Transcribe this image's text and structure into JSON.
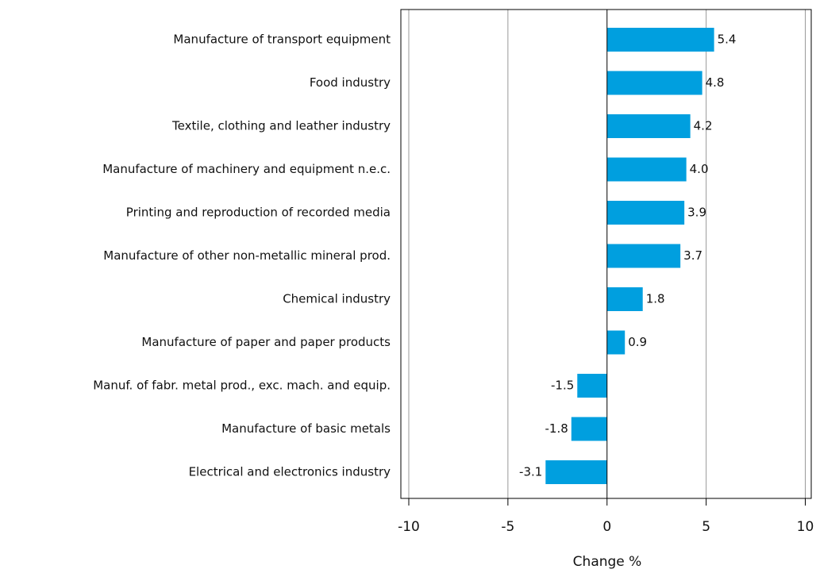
{
  "chart_data": {
    "type": "barh",
    "x_label": "Change %",
    "categories": [
      "Manufacture of transport equipment",
      "Food industry",
      "Textile, clothing and leather industry",
      "Manufacture of machinery and equipment n.e.c.",
      "Printing and reproduction of recorded media",
      "Manufacture of other non-metallic mineral prod.",
      "Chemical industry",
      "Manufacture of paper and paper products",
      "Manuf. of fabr. metal prod., exc. mach. and equip.",
      "Manufacture of basic metals",
      "Electrical and electronics industry"
    ],
    "values": [
      5.4,
      4.8,
      4.2,
      4.0,
      3.9,
      3.7,
      1.8,
      0.9,
      -1.5,
      -1.8,
      -3.1
    ],
    "value_labels": [
      "5.4",
      "4.8",
      "4.2",
      "4.0",
      "3.9",
      "3.7",
      "1.8",
      "0.9",
      "-1.5",
      "-1.8",
      "-3.1"
    ],
    "color": "#009fdf",
    "xlim": [
      -10.4,
      10.3
    ],
    "xticks": [
      -10,
      -5,
      0,
      5,
      10
    ],
    "grid": true
  }
}
